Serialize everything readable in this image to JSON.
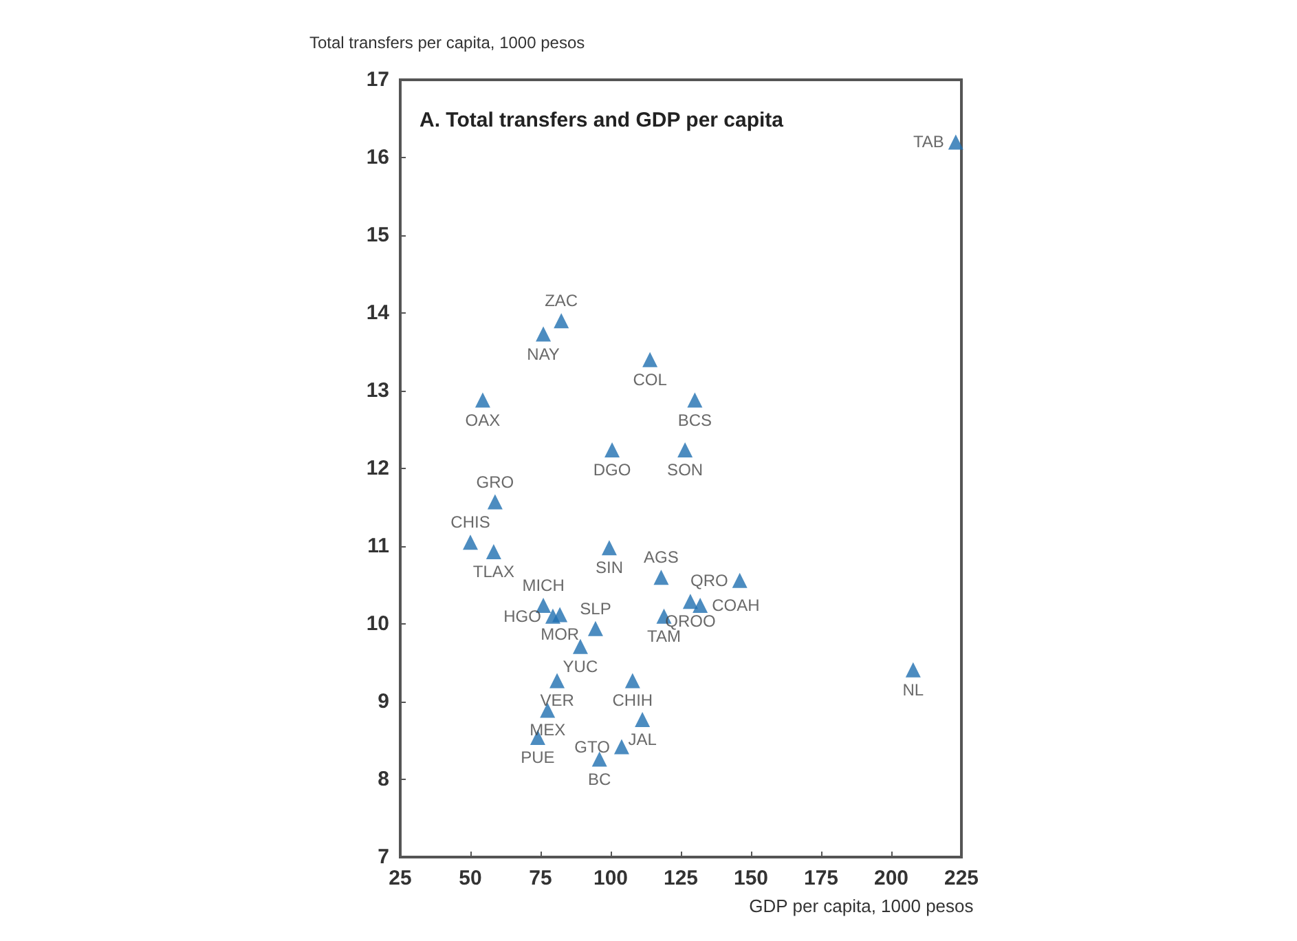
{
  "chart_data": {
    "type": "scatter",
    "title": "A. Total transfers and GDP per capita",
    "xlabel": "GDP per capita, 1000 pesos",
    "ylabel": "Total transfers per capita, 1000 pesos",
    "xlim": [
      25,
      225
    ],
    "xticks": [
      25,
      50,
      75,
      100,
      125,
      150,
      175,
      200,
      225
    ],
    "ylim": [
      7,
      17
    ],
    "yticks": [
      7,
      8,
      9,
      10,
      11,
      12,
      13,
      14,
      15,
      16,
      17
    ],
    "grid": false,
    "marker": "triangle",
    "series": [
      {
        "color": "#1f6fb0",
        "x": [
          223,
          82.4,
          76,
          114,
          54.4,
          130,
          100.5,
          126.5,
          58.8,
          50,
          58.3,
          99.5,
          118,
          146,
          131.9,
          128.4,
          119,
          76,
          79.4,
          81.9,
          94.6,
          89.2,
          80.9,
          107.8,
          77.5,
          111.3,
          103.9,
          74,
          96,
          207.8
        ],
        "values": [
          16.2,
          13.9,
          13.73,
          13.4,
          12.88,
          12.88,
          12.24,
          12.24,
          11.57,
          11.05,
          10.93,
          10.98,
          10.6,
          10.56,
          10.24,
          10.29,
          10.1,
          10.24,
          10.1,
          10.12,
          9.94,
          9.71,
          9.27,
          9.27,
          8.89,
          8.77,
          8.42,
          8.54,
          8.26,
          9.41
        ],
        "value_labels": [
          "TAB",
          "ZAC",
          "NAY",
          "COL",
          "OAX",
          "BCS",
          "DGO",
          "SON",
          "GRO",
          "CHIS",
          "TLAX",
          "SIN",
          "AGS",
          "QRO",
          "COAH",
          "QROO",
          "TAM",
          "MICH",
          "HGO",
          "MOR",
          "SLP",
          "YUC",
          "VER",
          "CHIH",
          "MEX",
          "JAL",
          "GTO",
          "PUE",
          "BC",
          "NL"
        ]
      }
    ]
  }
}
